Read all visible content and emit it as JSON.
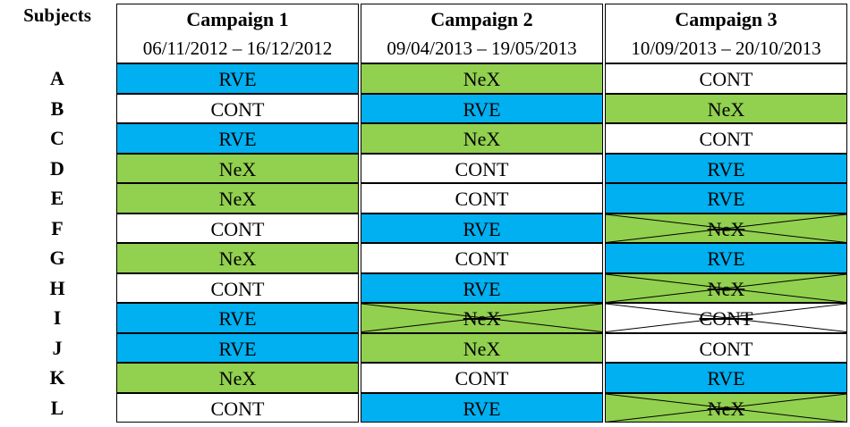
{
  "header": {
    "subjects_label": "Subjects",
    "campaigns": [
      {
        "title": "Campaign 1",
        "dates": "06/11/2012 – 16/12/2012"
      },
      {
        "title": "Campaign 2",
        "dates": "09/04/2013 – 19/05/2013"
      },
      {
        "title": "Campaign 3",
        "dates": "10/09/2013 – 20/10/2013"
      }
    ]
  },
  "colors": {
    "RVE": "#00b0f0",
    "NeX": "#92d050",
    "CONT": "#ffffff"
  },
  "rows": [
    {
      "subject": "A",
      "cells": [
        {
          "v": "RVE",
          "x": false
        },
        {
          "v": "NeX",
          "x": false
        },
        {
          "v": "CONT",
          "x": false
        }
      ]
    },
    {
      "subject": "B",
      "cells": [
        {
          "v": "CONT",
          "x": false
        },
        {
          "v": "RVE",
          "x": false
        },
        {
          "v": "NeX",
          "x": false
        }
      ]
    },
    {
      "subject": "C",
      "cells": [
        {
          "v": "RVE",
          "x": false
        },
        {
          "v": "NeX",
          "x": false
        },
        {
          "v": "CONT",
          "x": false
        }
      ]
    },
    {
      "subject": "D",
      "cells": [
        {
          "v": "NeX",
          "x": false
        },
        {
          "v": "CONT",
          "x": false
        },
        {
          "v": "RVE",
          "x": false
        }
      ]
    },
    {
      "subject": "E",
      "cells": [
        {
          "v": "NeX",
          "x": false
        },
        {
          "v": "CONT",
          "x": false
        },
        {
          "v": "RVE",
          "x": false
        }
      ]
    },
    {
      "subject": "F",
      "cells": [
        {
          "v": "CONT",
          "x": false
        },
        {
          "v": "RVE",
          "x": false
        },
        {
          "v": "NeX",
          "x": true
        }
      ]
    },
    {
      "subject": "G",
      "cells": [
        {
          "v": "NeX",
          "x": false
        },
        {
          "v": "CONT",
          "x": false
        },
        {
          "v": "RVE",
          "x": false
        }
      ]
    },
    {
      "subject": "H",
      "cells": [
        {
          "v": "CONT",
          "x": false
        },
        {
          "v": "RVE",
          "x": false
        },
        {
          "v": "NeX",
          "x": true
        }
      ]
    },
    {
      "subject": "I",
      "cells": [
        {
          "v": "RVE",
          "x": false
        },
        {
          "v": "NeX",
          "x": true
        },
        {
          "v": "CONT",
          "x": true
        }
      ]
    },
    {
      "subject": "J",
      "cells": [
        {
          "v": "RVE",
          "x": false
        },
        {
          "v": "NeX",
          "x": false
        },
        {
          "v": "CONT",
          "x": false
        }
      ]
    },
    {
      "subject": "K",
      "cells": [
        {
          "v": "NeX",
          "x": false
        },
        {
          "v": "CONT",
          "x": false
        },
        {
          "v": "RVE",
          "x": false
        }
      ]
    },
    {
      "subject": "L",
      "cells": [
        {
          "v": "CONT",
          "x": false
        },
        {
          "v": "RVE",
          "x": false
        },
        {
          "v": "NeX",
          "x": true
        }
      ]
    }
  ]
}
